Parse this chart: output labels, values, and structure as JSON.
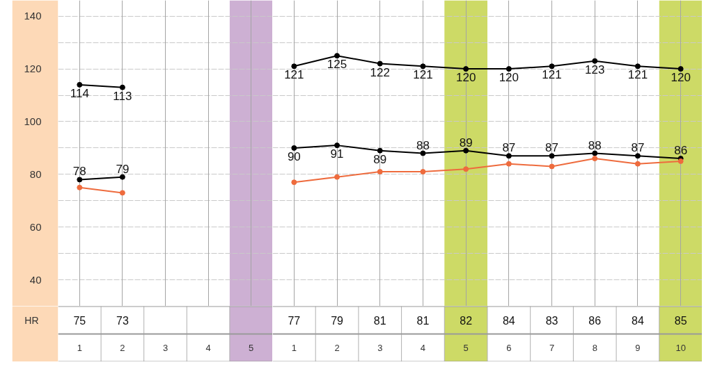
{
  "chart_data": [
    {
      "type": "line",
      "categories": [
        "1",
        "2",
        "3",
        "4",
        "5"
      ],
      "ylim": [
        30,
        146
      ],
      "yticks": [
        40,
        {
          "value": 50,
          "label": null
        },
        60,
        {
          "value": 70,
          "label": null
        },
        80,
        {
          "value": 90,
          "label": null
        },
        100,
        {
          "value": 110,
          "label": null
        },
        120,
        {
          "value": 130,
          "label": null
        },
        140
      ],
      "grid": true,
      "marker": "circle",
      "data_labels": true,
      "bands": [
        {
          "axis": "x",
          "from": "5",
          "to": "5",
          "color": "#cdb0d3"
        }
      ],
      "series": [
        {
          "color": "#000000",
          "values": [
            114,
            113,
            null,
            null,
            null
          ]
        },
        {
          "color": "#000000",
          "values": [
            78,
            79,
            null,
            null,
            null
          ]
        },
        {
          "name": "HR",
          "color": "#ee6b3d",
          "values": [
            75,
            73,
            null,
            null,
            null
          ]
        }
      ]
    },
    {
      "type": "line",
      "categories": [
        "1",
        "2",
        "3",
        "4",
        "5",
        "6",
        "7",
        "8",
        "9",
        "10"
      ],
      "ylim": [
        30,
        146
      ],
      "yticks": [
        40,
        {
          "value": 50,
          "label": null
        },
        60,
        {
          "value": 70,
          "label": null
        },
        80,
        {
          "value": 90,
          "label": null
        },
        100,
        {
          "value": 110,
          "label": null
        },
        120,
        {
          "value": 130,
          "label": null
        },
        140
      ],
      "tick_labels": "x",
      "grid": true,
      "marker": "circle",
      "data_labels": true,
      "bands": [
        {
          "axis": "x",
          "from": "5",
          "to": "5",
          "color": "#cdda66"
        },
        {
          "axis": "x",
          "from": "10",
          "to": "10",
          "color": "#cdda66"
        }
      ],
      "series": [
        {
          "color": "#000000",
          "values": [
            121,
            125,
            122,
            121,
            120,
            120,
            121,
            123,
            121,
            120
          ]
        },
        {
          "color": "#000000",
          "values": [
            90,
            91,
            89,
            88,
            89,
            87,
            87,
            88,
            87,
            86
          ]
        },
        {
          "color": "#ee6b3d",
          "values": [
            77,
            79,
            81,
            81,
            82,
            84,
            83,
            86,
            84,
            85
          ]
        }
      ]
    }
  ]
}
